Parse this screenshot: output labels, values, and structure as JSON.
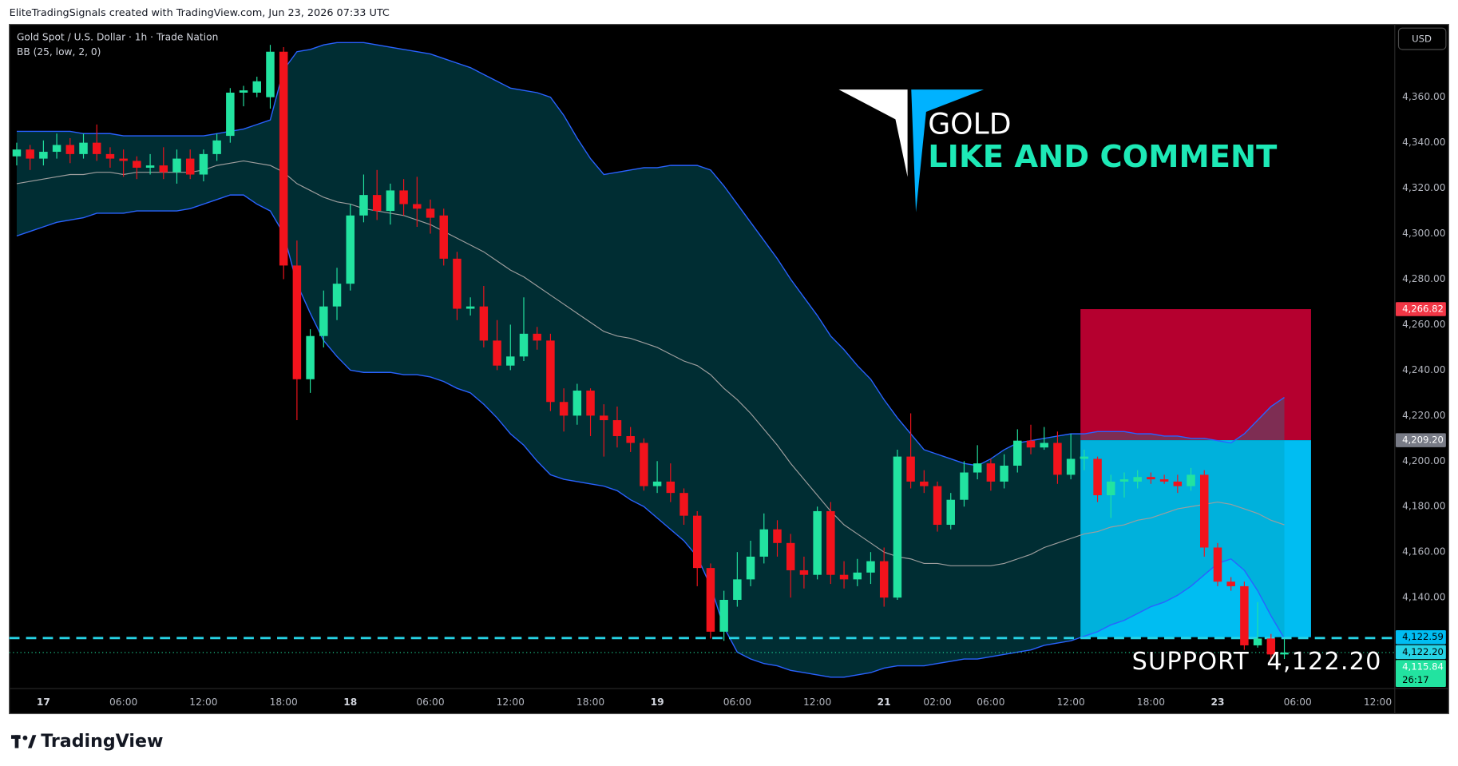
{
  "chart_data": {
    "type": "candlestick",
    "header": "EliteTradingSignals created with TradingView.com, Jun 23, 2026 07:33 UTC",
    "title": "Gold Spot / U.S. Dollar · 1h · Trade Nation",
    "indicator": "BB (25, low, 2, 0)",
    "currency": "USD",
    "brand": "TradingView",
    "watermark": {
      "lines": [
        "GOLD",
        "LIKE AND COMMENT"
      ],
      "colors": [
        "#ffffff",
        "#1de9b6"
      ]
    },
    "annotation": "SUPPORT  4,122.20",
    "categories": [
      null,
      null,
      "17",
      null,
      null,
      null,
      null,
      null,
      "06:00",
      null,
      null,
      null,
      null,
      null,
      "12:00",
      null,
      null,
      null,
      null,
      null,
      "18:00",
      null,
      null,
      null,
      null,
      "18",
      null,
      null,
      null,
      null,
      null,
      "06:00",
      null,
      null,
      null,
      null,
      null,
      "12:00",
      null,
      null,
      null,
      null,
      null,
      "18:00",
      null,
      null,
      null,
      null,
      "19",
      null,
      null,
      null,
      null,
      null,
      "06:00",
      null,
      null,
      null,
      null,
      null,
      "12:00",
      null,
      null,
      null,
      null,
      "21",
      null,
      null,
      null,
      "02:00",
      null,
      null,
      null,
      "06:00",
      null,
      null,
      null,
      null,
      null,
      "12:00",
      null,
      null,
      null,
      null,
      null,
      "18:00",
      null,
      null,
      null,
      null,
      "23",
      null,
      null,
      null,
      null,
      null,
      "06:00",
      null,
      null,
      null,
      null,
      null,
      "12:00"
    ],
    "open": [
      4334,
      4337,
      4333,
      4336,
      4339,
      4335,
      4340,
      4335,
      4333,
      4332,
      4329,
      4330,
      4327,
      4333,
      4326,
      4335,
      4343,
      4362,
      4362,
      4360,
      4380,
      4286,
      4236,
      4255,
      4268,
      4278,
      4308,
      4317,
      4310,
      4319,
      4313,
      4311,
      4308,
      4289,
      4267,
      4268,
      4253,
      4242,
      4246,
      4256,
      4253,
      4226,
      4220,
      4231,
      4220,
      4218,
      4211,
      4208,
      4189,
      4191,
      4186,
      4176,
      4153,
      4125,
      4139,
      4148,
      4158,
      4170,
      4164,
      4152,
      4150,
      4178,
      4150,
      4148,
      4151,
      4156,
      4140,
      4202,
      4191,
      4189,
      4172,
      4183,
      4195,
      4199,
      4191,
      4198,
      4209,
      4206,
      4208,
      4194,
      4201,
      4201,
      4185,
      4191,
      4191,
      4193,
      4192,
      4191,
      4189,
      4194,
      4162,
      4147,
      4145,
      4119,
      4122,
      4115,
      null,
      null,
      null,
      null,
      null,
      null,
      null
    ],
    "high": [
      4340,
      4339,
      4341,
      4344,
      4342,
      4344,
      4348,
      4338,
      4337,
      4334,
      4335,
      4338,
      4337,
      4337,
      4337,
      4344,
      4364,
      4365,
      4369,
      4383,
      4382,
      4297,
      4258,
      4275,
      4285,
      4313,
      4326,
      4328,
      4322,
      4324,
      4325,
      4315,
      4311,
      4292,
      4272,
      4277,
      4262,
      4260,
      4272,
      4259,
      4256,
      4232,
      4234,
      4232,
      4225,
      4224,
      4215,
      4210,
      4200,
      4199,
      4188,
      4178,
      4155,
      4143,
      4160,
      4165,
      4177,
      4174,
      4168,
      4158,
      4180,
      4182,
      4156,
      4157,
      4160,
      4162,
      4205,
      4221,
      4196,
      4191,
      4186,
      4200,
      4207,
      4201,
      4203,
      4214,
      4216,
      4215,
      4213,
      4212,
      4205,
      4202,
      4194,
      4195,
      4196,
      4195,
      4194,
      4194,
      4197,
      4196,
      4164,
      4149,
      4147,
      4138,
      4124,
      4122,
      null,
      null,
      null,
      null,
      null,
      null,
      null
    ],
    "low": [
      4330,
      4328,
      4330,
      4333,
      4331,
      4333,
      4332,
      4329,
      4325,
      4324,
      4326,
      4324,
      4322,
      4324,
      4323,
      4332,
      4340,
      4356,
      4360,
      4355,
      4280,
      4218,
      4230,
      4250,
      4262,
      4275,
      4305,
      4306,
      4304,
      4308,
      4303,
      4300,
      4286,
      4262,
      4264,
      4250,
      4240,
      4240,
      4244,
      4249,
      4222,
      4213,
      4216,
      4211,
      4202,
      4206,
      4204,
      4187,
      4186,
      4182,
      4172,
      4145,
      4122,
      4121,
      4136,
      4145,
      4155,
      4158,
      4140,
      4144,
      4148,
      4146,
      4144,
      4145,
      4146,
      4136,
      4139,
      4188,
      4186,
      4169,
      4170,
      4180,
      4192,
      4187,
      4188,
      4195,
      4203,
      4205,
      4190,
      4192,
      4196,
      4182,
      4175,
      4184,
      4188,
      4190,
      4190,
      4186,
      4187,
      4158,
      4145,
      4143,
      4117,
      4118,
      4113,
      4113,
      null,
      null,
      null,
      null,
      null,
      null,
      null
    ],
    "close": [
      4337,
      4333,
      4336,
      4339,
      4335,
      4340,
      4335,
      4333,
      4332,
      4329,
      4330,
      4327,
      4333,
      4326,
      4335,
      4341,
      4362,
      4363,
      4367,
      4380,
      4286,
      4236,
      4255,
      4268,
      4278,
      4308,
      4317,
      4310,
      4319,
      4313,
      4311,
      4307,
      4289,
      4267,
      4268,
      4253,
      4242,
      4246,
      4256,
      4253,
      4226,
      4220,
      4231,
      4220,
      4218,
      4211,
      4208,
      4189,
      4191,
      4186,
      4176,
      4153,
      4125,
      4139,
      4148,
      4158,
      4170,
      4164,
      4152,
      4150,
      4178,
      4150,
      4148,
      4151,
      4156,
      4140,
      4202,
      4191,
      4189,
      4172,
      4183,
      4195,
      4199,
      4191,
      4198,
      4209,
      4206,
      4208,
      4194,
      4201,
      4202,
      4185,
      4191,
      4192,
      4193,
      4192,
      4191,
      4189,
      4194,
      4162,
      4147,
      4145,
      4119,
      4122,
      4115,
      4115.84,
      null,
      null,
      null,
      null,
      null,
      null,
      null
    ],
    "up_color": "#22e3a0",
    "down_color": "#f2131c",
    "bands": [
      {
        "name": "upper",
        "color": "#2962ff",
        "values": [
          4345,
          4345,
          4345,
          4345,
          4345,
          4344,
          4344,
          4344,
          4343,
          4343,
          4343,
          4343,
          4343,
          4343,
          4343,
          4344,
          4345,
          4346,
          4348,
          4350,
          4372,
          4380,
          4381,
          4383,
          4384,
          4384,
          4384,
          4383,
          4382,
          4381,
          4380,
          4379,
          4377,
          4375,
          4373,
          4370,
          4367,
          4364,
          4363,
          4362,
          4360,
          4352,
          4342,
          4333,
          4326,
          4327,
          4328,
          4329,
          4329,
          4330,
          4330,
          4330,
          4328,
          4321,
          4313,
          4305,
          4297,
          4289,
          4280,
          4272,
          4264,
          4255,
          4249,
          4242,
          4236,
          4227,
          4219,
          4212,
          4205,
          4203,
          4201,
          4199,
          4198,
          4201,
          4205,
          4208,
          4209,
          4210,
          4211,
          4212,
          4212,
          4213,
          4213,
          4213,
          4212,
          4212,
          4211,
          4211,
          4210,
          4210,
          4209,
          4208,
          4212,
          4218,
          4224,
          4228,
          null,
          null,
          null,
          null,
          null,
          null,
          null
        ]
      },
      {
        "name": "basis",
        "color": "#9e9e9e",
        "values": [
          4322,
          4323,
          4324,
          4325,
          4326,
          4326,
          4327,
          4327,
          4326,
          4327,
          4327,
          4327,
          4327,
          4327,
          4328,
          4330,
          4331,
          4332,
          4331,
          4330,
          4327,
          4322,
          4319,
          4316,
          4314,
          4313,
          4311,
          4310,
          4309,
          4308,
          4306,
          4304,
          4301,
          4298,
          4295,
          4292,
          4288,
          4284,
          4281,
          4277,
          4273,
          4269,
          4265,
          4261,
          4257,
          4255,
          4254,
          4252,
          4250,
          4247,
          4244,
          4242,
          4238,
          4232,
          4227,
          4221,
          4214,
          4207,
          4199,
          4192,
          4185,
          4178,
          4172,
          4168,
          4164,
          4160,
          4158,
          4157,
          4155,
          4155,
          4154,
          4154,
          4154,
          4154,
          4155,
          4157,
          4159,
          4162,
          4164,
          4166,
          4168,
          4169,
          4171,
          4172,
          4174,
          4175,
          4177,
          4179,
          4180,
          4181,
          4182,
          4181,
          4179,
          4177,
          4174,
          4172,
          null,
          null,
          null,
          null,
          null,
          null,
          null
        ]
      },
      {
        "name": "lower",
        "color": "#2962ff",
        "values": [
          4299,
          4301,
          4303,
          4305,
          4306,
          4307,
          4309,
          4309,
          4309,
          4310,
          4310,
          4310,
          4310,
          4311,
          4313,
          4315,
          4317,
          4317,
          4313,
          4310,
          4300,
          4278,
          4265,
          4253,
          4246,
          4240,
          4239,
          4239,
          4239,
          4238,
          4238,
          4237,
          4235,
          4232,
          4230,
          4225,
          4219,
          4212,
          4207,
          4200,
          4194,
          4192,
          4191,
          4190,
          4189,
          4187,
          4183,
          4180,
          4175,
          4170,
          4165,
          4158,
          4145,
          4127,
          4116,
          4113,
          4111,
          4110,
          4108,
          4107,
          4106,
          4105,
          4105,
          4106,
          4107,
          4109,
          4110,
          4110,
          4110,
          4111,
          4112,
          4113,
          4113,
          4114,
          4115,
          4116,
          4117,
          4119,
          4120,
          4121,
          4123,
          4125,
          4128,
          4130,
          4133,
          4136,
          4138,
          4141,
          4145,
          4150,
          4155,
          4157,
          4152,
          4143,
          4132,
          4122,
          null,
          null,
          null,
          null,
          null,
          null,
          null
        ]
      }
    ],
    "band_fill": "rgba(0,150,170,0.3)",
    "position_tool": {
      "from": 80,
      "to": 97,
      "stop": 4266.82,
      "entry": 4209.2,
      "target": 4122.59,
      "stop_color": "#b5002f",
      "target_color": "#00bdf2"
    },
    "price_labels": [
      {
        "value": 4266.82,
        "label": "4,266.82",
        "color": "#f23645"
      },
      {
        "value": 4209.2,
        "label": "4,209.20",
        "color": "#787b86"
      },
      {
        "value": 4122.59,
        "label": "4,122.59",
        "color": "#00bdf2"
      },
      {
        "value": 4122.2,
        "label": "4,122.20",
        "color": "#26d4e6",
        "line": "dashed"
      },
      {
        "value": 4115.84,
        "label": "4,115.84",
        "color": "#22e3a0",
        "line": "dotted",
        "countdown": "26:17"
      }
    ],
    "ylim": [
      4100,
      4392
    ],
    "yticks": [
      {
        "value": 4140,
        "label": "4,140.00"
      },
      {
        "value": 4160,
        "label": "4,160.00"
      },
      {
        "value": 4180,
        "label": "4,180.00"
      },
      {
        "value": 4200,
        "label": "4,200.00"
      },
      {
        "value": 4220,
        "label": "4,220.00"
      },
      {
        "value": 4240,
        "label": "4,240.00"
      },
      {
        "value": 4260,
        "label": "4,260.00"
      },
      {
        "value": 4280,
        "label": "4,280.00"
      },
      {
        "value": 4300,
        "label": "4,300.00"
      },
      {
        "value": 4320,
        "label": "4,320.00"
      },
      {
        "value": 4340,
        "label": "4,340.00"
      },
      {
        "value": 4360,
        "label": "4,360.00"
      }
    ],
    "grid": false
  }
}
